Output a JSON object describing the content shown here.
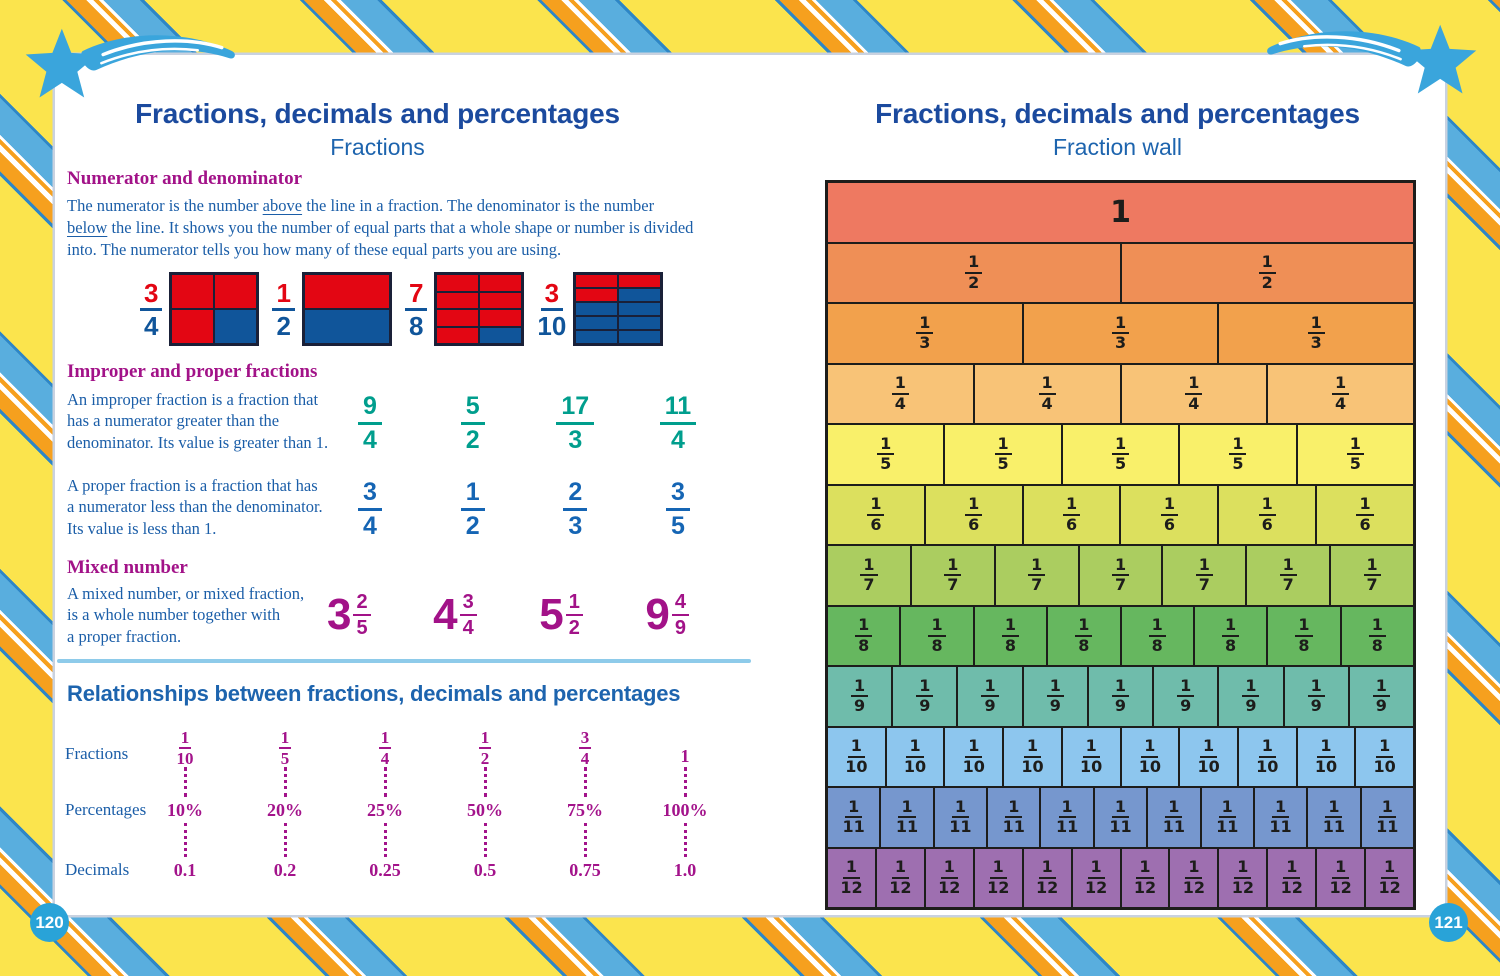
{
  "palette": {
    "title_blue": "#1b4a9e",
    "subtitle_blue": "#1d64ae",
    "heading_magenta": "#a21288",
    "body_blue": "#1b5ea8",
    "improper_teal": "#009e8d",
    "proper_blue": "#1565b4",
    "relationship_magenta": "#a3138b",
    "diagram_red": "#e30613",
    "diagram_blue": "#10559a",
    "divider_blue": "#8ecbea",
    "page_circle_blue": "#29a3d8",
    "star_blue": "#3aa5dc",
    "border_yellow": "#fbe44d",
    "wall_text": "#1d1d1b"
  },
  "left": {
    "title": "Fractions, decimals and percentages",
    "subtitle": "Fractions",
    "page_number": "120",
    "numerator_section": {
      "heading": "Numerator and denominator",
      "paragraph": [
        {
          "t": "The numerator is the number "
        },
        {
          "t": "above",
          "u": true
        },
        {
          "t": " the line in a fraction. The denominator is the number "
        },
        {
          "t": "below",
          "u": true
        },
        {
          "t": " the line. It shows you the number of equal parts that a whole shape or number is divided into. The numerator tells you how many of these equal parts you are using."
        }
      ],
      "diagrams": [
        {
          "numerator": "3",
          "denominator": "4",
          "cols": 2,
          "rows": 2,
          "red_cells": [
            0,
            1,
            2
          ]
        },
        {
          "numerator": "1",
          "denominator": "2",
          "cols": 1,
          "rows": 2,
          "red_cells": [
            0
          ]
        },
        {
          "numerator": "7",
          "denominator": "8",
          "cols": 2,
          "rows": 4,
          "red_cells": [
            0,
            1,
            2,
            3,
            4,
            5,
            6
          ]
        },
        {
          "numerator": "3",
          "denominator": "10",
          "cols": 2,
          "rows": 5,
          "red_cells": [
            0,
            1,
            2
          ]
        }
      ]
    },
    "improper_proper_section": {
      "heading": "Improper and proper fractions",
      "improper_text": "An improper fraction is a fraction that\nhas a numerator greater than the\ndenominator. Its value is greater than 1.",
      "improper_fractions": [
        {
          "n": "9",
          "d": "4"
        },
        {
          "n": "5",
          "d": "2"
        },
        {
          "n": "17",
          "d": "3"
        },
        {
          "n": "11",
          "d": "4"
        }
      ],
      "proper_text": "A proper fraction is a fraction that has\na numerator less than the denominator.\nIts value is less than 1.",
      "proper_fractions": [
        {
          "n": "3",
          "d": "4"
        },
        {
          "n": "1",
          "d": "2"
        },
        {
          "n": "2",
          "d": "3"
        },
        {
          "n": "3",
          "d": "5"
        }
      ]
    },
    "mixed_section": {
      "heading": "Mixed number",
      "text": "A mixed number, or mixed fraction,\n is a whole number together with\na proper fraction.",
      "numbers": [
        {
          "whole": "3",
          "n": "2",
          "d": "5"
        },
        {
          "whole": "4",
          "n": "3",
          "d": "4"
        },
        {
          "whole": "5",
          "n": "1",
          "d": "2"
        },
        {
          "whole": "9",
          "n": "4",
          "d": "9"
        }
      ]
    },
    "relationships": {
      "heading": "Relationships between fractions, decimals and percentages",
      "row_labels": [
        "Fractions",
        "Percentages",
        "Decimals"
      ],
      "columns": [
        {
          "fraction": {
            "n": "1",
            "d": "10"
          },
          "percent": "10%",
          "decimal": "0.1"
        },
        {
          "fraction": {
            "n": "1",
            "d": "5"
          },
          "percent": "20%",
          "decimal": "0.2"
        },
        {
          "fraction": {
            "n": "1",
            "d": "4"
          },
          "percent": "25%",
          "decimal": "0.25"
        },
        {
          "fraction": {
            "n": "1",
            "d": "2"
          },
          "percent": "50%",
          "decimal": "0.5"
        },
        {
          "fraction": {
            "n": "3",
            "d": "4"
          },
          "percent": "75%",
          "decimal": "0.75"
        },
        {
          "fraction": {
            "whole": "1"
          },
          "percent": "100%",
          "decimal": "1.0"
        }
      ]
    }
  },
  "right": {
    "title": "Fractions, decimals and percentages",
    "subtitle": "Fraction wall",
    "page_number": "121",
    "wall_rows": [
      {
        "label": "1",
        "count": 1,
        "color": "#ee7961"
      },
      {
        "n": "1",
        "d": "2",
        "count": 2,
        "color": "#ef8f56"
      },
      {
        "n": "1",
        "d": "3",
        "count": 3,
        "color": "#f2a14c"
      },
      {
        "n": "1",
        "d": "4",
        "count": 4,
        "color": "#f8c377"
      },
      {
        "n": "1",
        "d": "5",
        "count": 5,
        "color": "#f9f06a"
      },
      {
        "n": "1",
        "d": "6",
        "count": 6,
        "color": "#dce05e"
      },
      {
        "n": "1",
        "d": "7",
        "count": 7,
        "color": "#abcd60"
      },
      {
        "n": "1",
        "d": "8",
        "count": 8,
        "color": "#66b75f"
      },
      {
        "n": "1",
        "d": "9",
        "count": 9,
        "color": "#6fbcab"
      },
      {
        "n": "1",
        "d": "10",
        "count": 10,
        "color": "#8dc6ee"
      },
      {
        "n": "1",
        "d": "11",
        "count": 11,
        "color": "#7697ce"
      },
      {
        "n": "1",
        "d": "12",
        "count": 12,
        "color": "#9e6fb0"
      }
    ]
  }
}
